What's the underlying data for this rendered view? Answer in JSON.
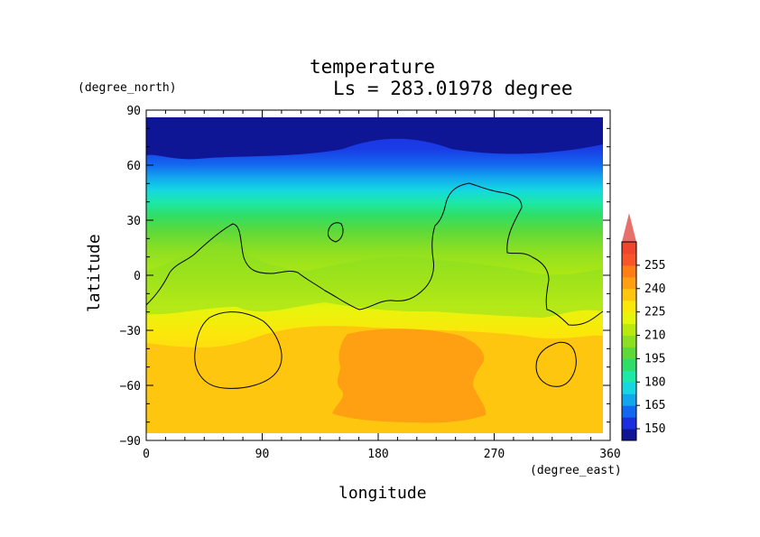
{
  "chart_data": {
    "type": "heatmap",
    "title": "temperature",
    "subtitle": "Ls = 283.01978 degree",
    "xlabel": "longitude",
    "ylabel": "latitude",
    "xunit": "(degree_east)",
    "yunit": "(degree_north)",
    "xlim": [
      0,
      360
    ],
    "ylim": [
      -90,
      90
    ],
    "xticks": [
      "0",
      "90",
      "180",
      "270",
      "360"
    ],
    "yticks": [
      "90",
      "60",
      "30",
      "0",
      "−30",
      "−60",
      "−90"
    ],
    "colorbar": {
      "levels": [
        150,
        165,
        180,
        195,
        210,
        225,
        240,
        255
      ],
      "labels": [
        "150",
        "165",
        "180",
        "195",
        "210",
        "225",
        "240",
        "255"
      ],
      "colors": [
        "#0f1696",
        "#1c2fdc",
        "#1468f0",
        "#12a6ef",
        "#14d7e2",
        "#1ce8a7",
        "#2fde67",
        "#5ed93a",
        "#8cdf22",
        "#b8ea0f",
        "#e6f50c",
        "#fbe80b",
        "#ffc60f",
        "#ff9f12",
        "#ff7d12",
        "#f8552a",
        "#f0452e",
        "#e8706a"
      ]
    },
    "bands": [
      {
        "lat_top": 85,
        "lat_bottom": 62,
        "temp": 150
      },
      {
        "lat_top": 62,
        "lat_bottom": 45,
        "temp": 175
      },
      {
        "lat_top": 45,
        "lat_bottom": 30,
        "temp": 200
      },
      {
        "lat_top": 30,
        "lat_bottom": 0,
        "temp": 212
      },
      {
        "lat_top": 0,
        "lat_bottom": -25,
        "temp": 222
      },
      {
        "lat_top": -25,
        "lat_bottom": -85,
        "temp": 230
      }
    ]
  }
}
